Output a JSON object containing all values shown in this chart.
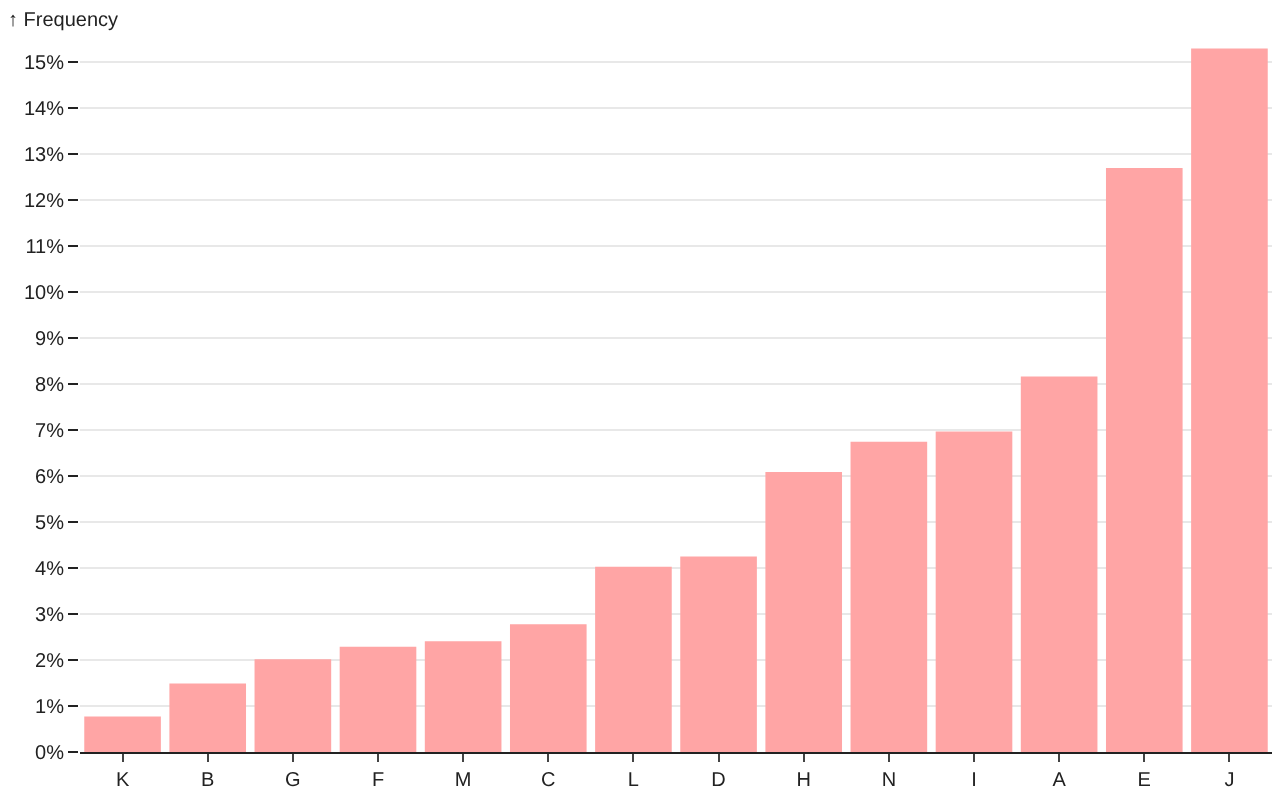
{
  "chart_data": {
    "type": "bar",
    "ylabel": "↑ Frequency",
    "categories": [
      "K",
      "B",
      "G",
      "F",
      "M",
      "C",
      "L",
      "D",
      "H",
      "N",
      "I",
      "A",
      "E",
      "J"
    ],
    "values": [
      0.77,
      1.49,
      2.02,
      2.29,
      2.41,
      2.78,
      4.03,
      4.25,
      6.09,
      6.75,
      6.97,
      8.17,
      12.7,
      15.3
    ],
    "color": "#ffa5a5",
    "ylim": [
      0,
      15.4
    ],
    "yticks": [
      {
        "value": 0,
        "label": "0%"
      },
      {
        "value": 1,
        "label": "1%"
      },
      {
        "value": 2,
        "label": "2%"
      },
      {
        "value": 3,
        "label": "3%"
      },
      {
        "value": 4,
        "label": "4%"
      },
      {
        "value": 5,
        "label": "5%"
      },
      {
        "value": 6,
        "label": "6%"
      },
      {
        "value": 7,
        "label": "7%"
      },
      {
        "value": 8,
        "label": "8%"
      },
      {
        "value": 9,
        "label": "9%"
      },
      {
        "value": 10,
        "label": "10%"
      },
      {
        "value": 11,
        "label": "11%"
      },
      {
        "value": 12,
        "label": "12%"
      },
      {
        "value": 13,
        "label": "13%"
      },
      {
        "value": 14,
        "label": "14%"
      },
      {
        "value": 15,
        "label": "15%"
      }
    ],
    "grid": "y"
  }
}
